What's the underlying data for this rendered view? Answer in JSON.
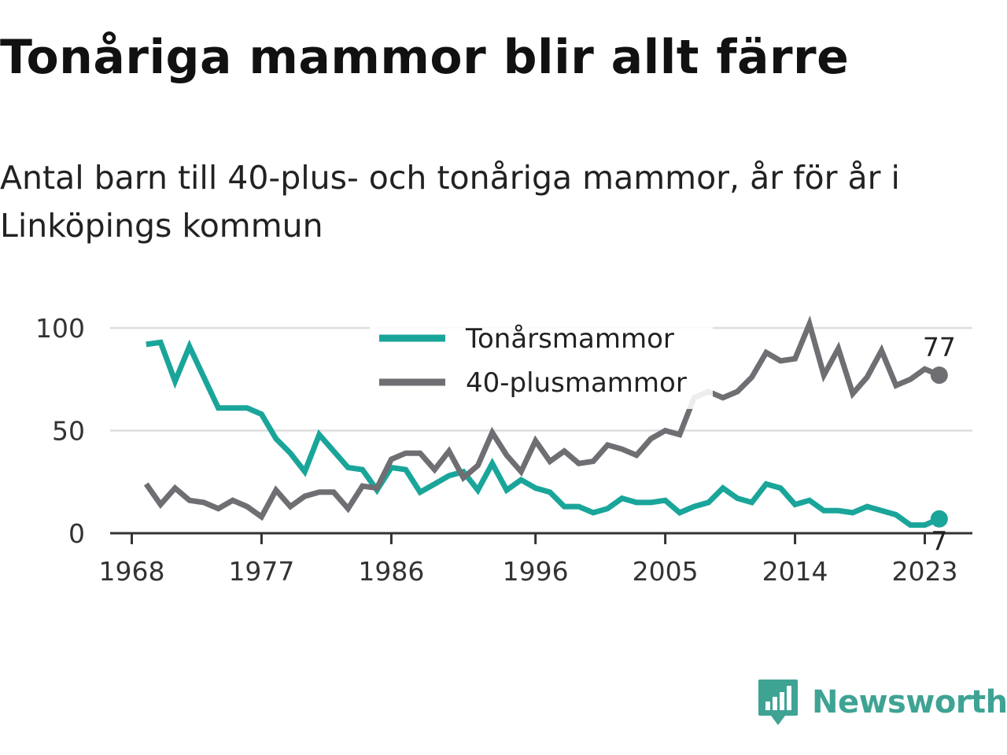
{
  "title": "Tonåriga mammor blir allt färre",
  "subtitle": "Antal barn till 40-plus- och tonåriga mammor, år för år i Linköpings kommun",
  "brand": {
    "name": "Newsworthy",
    "icon": "newsworthy-logo-icon",
    "color": "#3fa394"
  },
  "chart_data": {
    "type": "line",
    "x": [
      1969,
      1970,
      1971,
      1972,
      1973,
      1974,
      1975,
      1976,
      1977,
      1978,
      1979,
      1980,
      1981,
      1982,
      1983,
      1984,
      1985,
      1986,
      1987,
      1988,
      1989,
      1990,
      1991,
      1992,
      1993,
      1994,
      1995,
      1996,
      1997,
      1998,
      1999,
      2000,
      2001,
      2002,
      2003,
      2004,
      2005,
      2006,
      2007,
      2008,
      2009,
      2010,
      2011,
      2012,
      2013,
      2014,
      2015,
      2016,
      2017,
      2018,
      2019,
      2020,
      2021,
      2022,
      2023,
      2024
    ],
    "series": [
      {
        "name": "Tonårsmammor",
        "color": "#1aa59a",
        "values": [
          92,
          93,
          74,
          91,
          76,
          61,
          61,
          61,
          58,
          46,
          39,
          30,
          48,
          40,
          32,
          31,
          21,
          32,
          31,
          20,
          24,
          28,
          30,
          21,
          34,
          21,
          26,
          22,
          20,
          13,
          13,
          10,
          12,
          17,
          15,
          15,
          16,
          10,
          13,
          15,
          22,
          17,
          15,
          24,
          22,
          14,
          16,
          11,
          11,
          10,
          13,
          11,
          9,
          4,
          4,
          7
        ]
      },
      {
        "name": "40-plusmammor",
        "color": "#6e6e73",
        "values": [
          24,
          14,
          22,
          16,
          15,
          12,
          16,
          13,
          8,
          21,
          13,
          18,
          20,
          20,
          12,
          23,
          22,
          36,
          39,
          39,
          31,
          40,
          27,
          33,
          49,
          38,
          30,
          45,
          35,
          40,
          34,
          35,
          43,
          41,
          38,
          46,
          50,
          48,
          66,
          69,
          66,
          69,
          76,
          88,
          84,
          85,
          102,
          77,
          90,
          68,
          76,
          89,
          72,
          75,
          80,
          77
        ]
      }
    ],
    "xticks": [
      "1968",
      "1977",
      "1986",
      "1996",
      "2005",
      "2014",
      "2023"
    ],
    "xtick_years": [
      1968,
      1977,
      1986,
      1996,
      2005,
      2014,
      2023
    ],
    "yticks": [
      "0",
      "50",
      "100"
    ],
    "ytick_values": [
      0,
      50,
      100
    ],
    "xlim": [
      1966.5,
      2026.3
    ],
    "ylim": [
      0,
      100
    ],
    "end_labels": [
      "7",
      "77"
    ],
    "grid": "horizontal",
    "legend_placement": "top-center"
  }
}
